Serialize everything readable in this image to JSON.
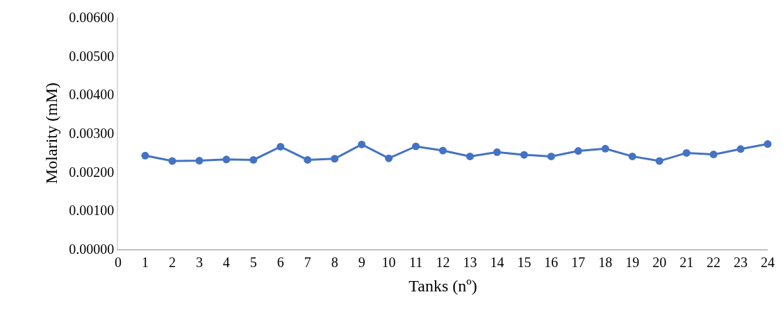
{
  "chart_data": {
    "type": "line",
    "xlabel": "Tanks (nº)",
    "ylabel": "Molarity (mM)",
    "x": [
      1,
      2,
      3,
      4,
      5,
      6,
      7,
      8,
      9,
      10,
      11,
      12,
      13,
      14,
      15,
      16,
      17,
      18,
      19,
      20,
      21,
      22,
      23,
      24
    ],
    "series": [
      {
        "color": "#4472c4",
        "values": [
          0.00242,
          0.00228,
          0.00229,
          0.00232,
          0.00231,
          0.00265,
          0.00231,
          0.00234,
          0.00271,
          0.00235,
          0.00266,
          0.00255,
          0.0024,
          0.00251,
          0.00244,
          0.0024,
          0.00254,
          0.0026,
          0.0024,
          0.00228,
          0.00249,
          0.00245,
          0.00259,
          0.00272
        ]
      }
    ],
    "xlim": [
      0,
      24
    ],
    "xticks": [
      0,
      1,
      2,
      3,
      4,
      5,
      6,
      7,
      8,
      9,
      10,
      11,
      12,
      13,
      14,
      15,
      16,
      17,
      18,
      19,
      20,
      21,
      22,
      23,
      24
    ],
    "ylim": [
      0,
      0.006
    ],
    "yticks": [
      {
        "value": 0,
        "label": "0.00000"
      },
      {
        "value": 0.001,
        "label": "0.00100"
      },
      {
        "value": 0.002,
        "label": "0.00200"
      },
      {
        "value": 0.003,
        "label": "0.00300"
      },
      {
        "value": 0.004,
        "label": "0.00400"
      },
      {
        "value": 0.005,
        "label": "0.00500"
      },
      {
        "value": 0.006,
        "label": "0.00600"
      }
    ],
    "marker": "circle",
    "line_style": "solid"
  }
}
